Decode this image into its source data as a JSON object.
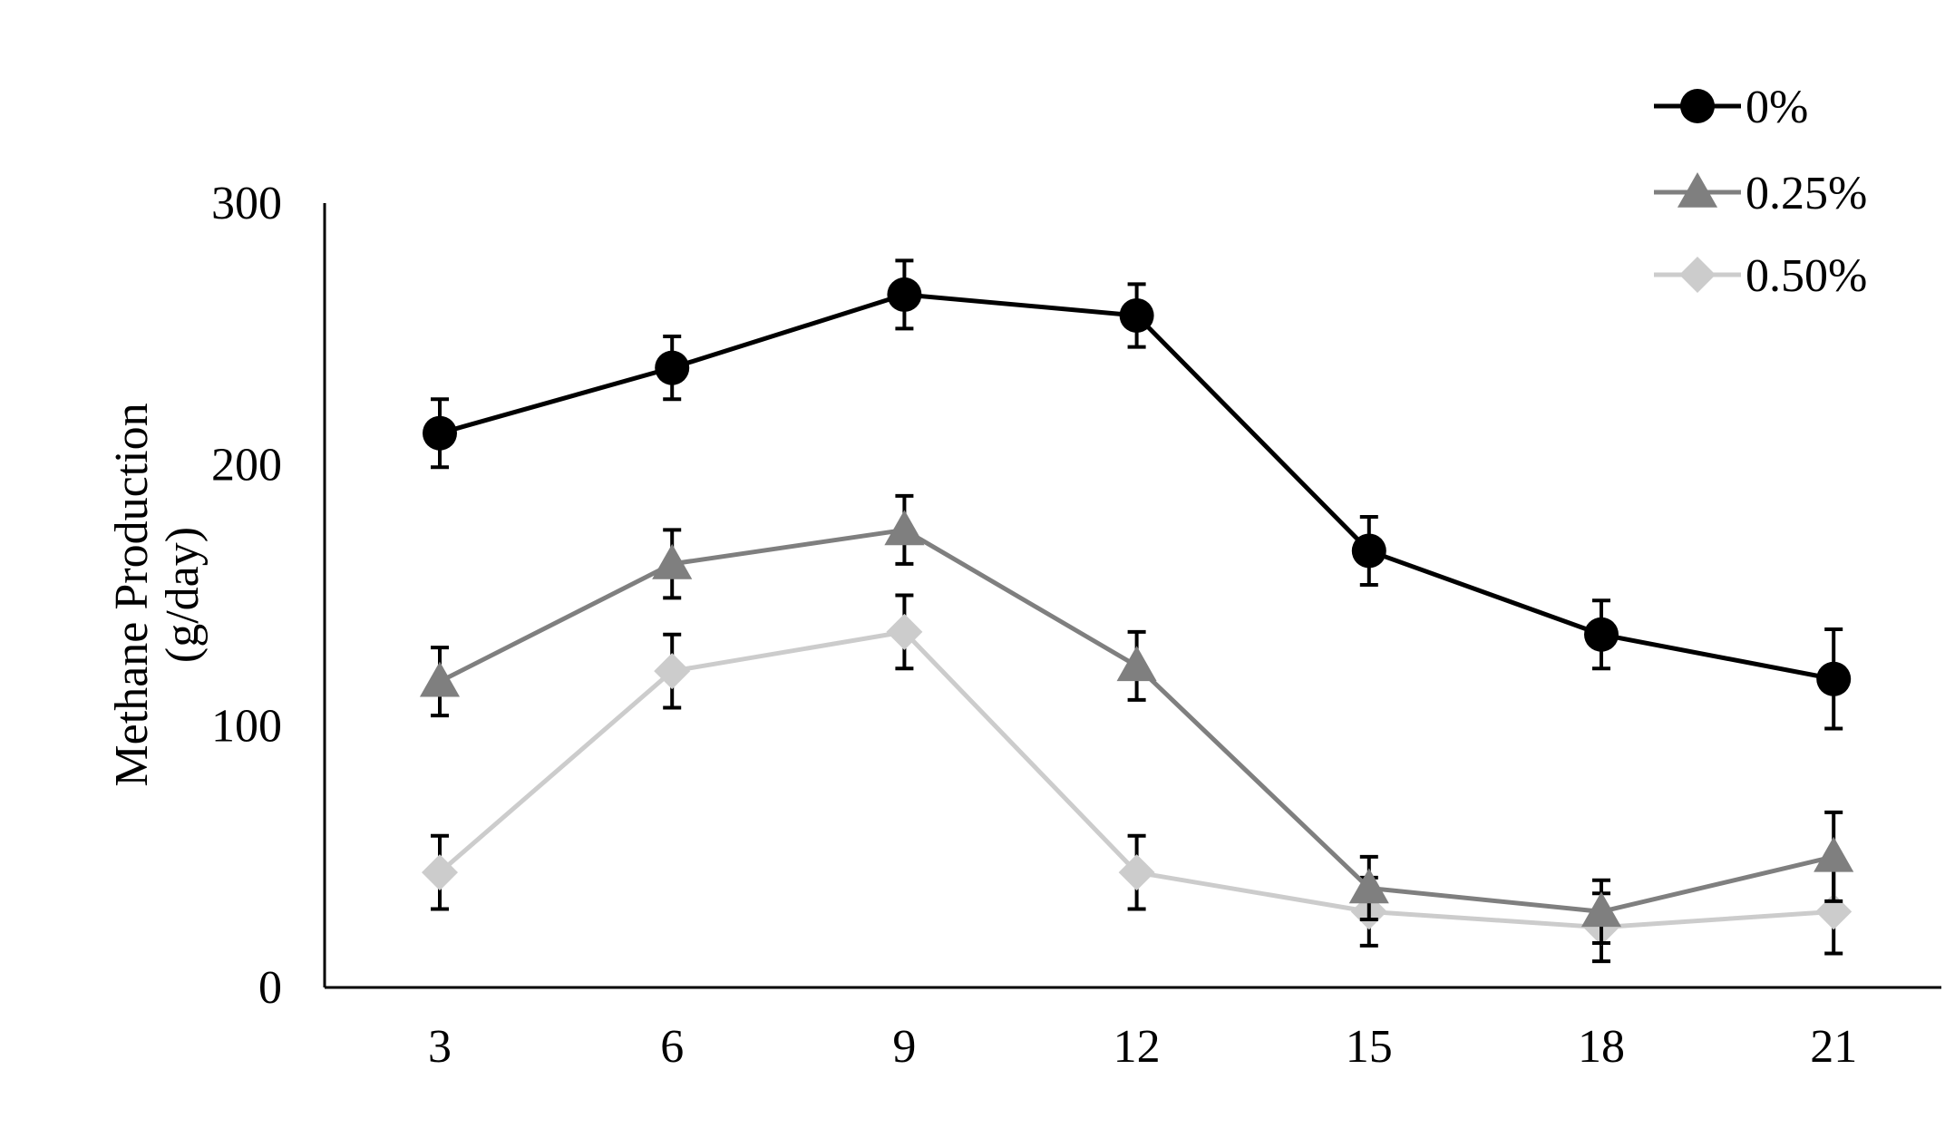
{
  "chart_data": {
    "type": "line",
    "title": "",
    "xlabel": "",
    "ylabel": "Methane Production",
    "ylabel_unit": "(g/day)",
    "ylim": [
      0,
      300
    ],
    "y_ticks": [
      0,
      100,
      200,
      300
    ],
    "x": [
      3,
      6,
      9,
      12,
      15,
      18,
      21
    ],
    "x_tick_labels": [
      "3",
      "6",
      "9",
      "12",
      "15",
      "18",
      "21"
    ],
    "grid": false,
    "legend_position": "top-right",
    "series": [
      {
        "name": "0%",
        "marker": "circle",
        "color": "#000000",
        "values": [
          212,
          237,
          265,
          257,
          167,
          135,
          118
        ],
        "errors": [
          13,
          12,
          13,
          12,
          13,
          13,
          19
        ]
      },
      {
        "name": "0.25%",
        "marker": "triangle",
        "color": "#7f7f7f",
        "values": [
          117,
          162,
          175,
          123,
          38,
          29,
          50
        ],
        "errors": [
          13,
          13,
          13,
          13,
          12,
          12,
          17
        ]
      },
      {
        "name": "0.50%",
        "marker": "diamond",
        "color": "#cccccc",
        "values": [
          44,
          121,
          136,
          44,
          29,
          23,
          29
        ],
        "errors": [
          14,
          14,
          14,
          14,
          13,
          13,
          16
        ]
      }
    ]
  }
}
